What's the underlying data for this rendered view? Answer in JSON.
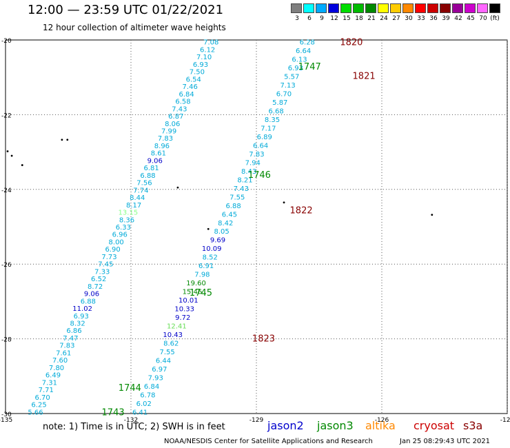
{
  "header": {
    "title": "12:00 — 23:59 UTC 01/22/2021",
    "subtitle": "12 hour collection of altimeter wave heights"
  },
  "colorbar": {
    "unit": "(ft)",
    "levels": [
      {
        "label": "3",
        "color": "#7f7f7f"
      },
      {
        "label": "6",
        "color": "#00ffff"
      },
      {
        "label": "9",
        "color": "#00aaff"
      },
      {
        "label": "12",
        "color": "#0000dd"
      },
      {
        "label": "15",
        "color": "#00dd00"
      },
      {
        "label": "18",
        "color": "#00bb00"
      },
      {
        "label": "21",
        "color": "#008800"
      },
      {
        "label": "24",
        "color": "#ffff00"
      },
      {
        "label": "27",
        "color": "#ffcc00"
      },
      {
        "label": "30",
        "color": "#ff8800"
      },
      {
        "label": "33",
        "color": "#ff0000"
      },
      {
        "label": "36",
        "color": "#cc0000"
      },
      {
        "label": "39",
        "color": "#880000"
      },
      {
        "label": "42",
        "color": "#990099"
      },
      {
        "label": "45",
        "color": "#cc00cc"
      },
      {
        "label": "70",
        "color": "#ff66ff"
      },
      {
        "label": "",
        "color": "#000000"
      }
    ]
  },
  "chart_data": {
    "type": "scatter",
    "xlim": [
      -135,
      -123
    ],
    "ylim": [
      -30,
      -20
    ],
    "x_ticks": [
      "-135",
      "-132",
      "-129",
      "-126",
      "-123",
      "-120"
    ],
    "y_ticks": [
      "-20",
      "-22",
      "-24",
      "-26",
      "-28",
      "-30"
    ],
    "swh_colors": {
      "cyan": "#00aad8",
      "blue": "#0000c8",
      "green": "#008800",
      "lightgreen": "#66dd55",
      "pale": "#88ff88"
    },
    "tracks": [
      {
        "name": "track-west",
        "x_start": -134.1,
        "x_end": -129.9,
        "values": [
          "5.66",
          "6.25",
          "6.70",
          "7.71",
          "7.31",
          "6.49",
          "7.80",
          "7.60",
          "7.61",
          "7.83",
          "7.47",
          "6.86",
          "8.32",
          "6.93",
          "11.02",
          "6.88",
          "9.06",
          "8.72",
          "6.52",
          "7.33",
          "7.45",
          "7.73",
          "6.90",
          "8.00",
          "6.96",
          "6.33",
          "8.36",
          "13.15",
          "8.17",
          "8.44",
          "7.74",
          "7.56",
          "6.88",
          "6.81",
          "9.06",
          "8.61",
          "8.96",
          "7.83",
          "7.99",
          "8.06",
          "6.87",
          "7.43",
          "6.58",
          "6.84",
          "7.46",
          "6.54",
          "7.50",
          "6.93",
          "7.10",
          "6.12",
          "7.08"
        ],
        "colors": [
          "c",
          "c",
          "c",
          "c",
          "c",
          "c",
          "c",
          "c",
          "c",
          "c",
          "c",
          "c",
          "c",
          "c",
          "b",
          "c",
          "b",
          "c",
          "c",
          "c",
          "c",
          "c",
          "c",
          "c",
          "c",
          "c",
          "c",
          "p",
          "c",
          "c",
          "c",
          "c",
          "c",
          "c",
          "b",
          "c",
          "c",
          "c",
          "c",
          "c",
          "c",
          "c",
          "c",
          "c",
          "c",
          "c",
          "c",
          "c",
          "c",
          "c",
          "c"
        ]
      },
      {
        "name": "track-east",
        "x_start": -131.6,
        "x_end": -127.6,
        "values": [
          "6.41",
          "6.02",
          "6.78",
          "6.84",
          "7.93",
          "6.97",
          "6.44",
          "7.55",
          "8.62",
          "10.43",
          "12.41",
          "9.72",
          "10.33",
          "10.01",
          "15.46",
          "19.60",
          "7.98",
          "6.91",
          "8.52",
          "10.09",
          "9.69",
          "8.05",
          "8.42",
          "6.45",
          "6.88",
          "7.55",
          "7.43",
          "8.21",
          "8.43",
          "7.94",
          "7.83",
          "6.64",
          "6.89",
          "7.17",
          "8.35",
          "6.68",
          "5.87",
          "6.70",
          "7.13",
          "5.57",
          "6.93",
          "6.13",
          "6.64",
          "6.28"
        ],
        "colors": [
          "c",
          "c",
          "c",
          "c",
          "c",
          "c",
          "c",
          "c",
          "c",
          "b",
          "l",
          "b",
          "b",
          "b",
          "g",
          "g",
          "c",
          "c",
          "c",
          "b",
          "b",
          "c",
          "c",
          "c",
          "c",
          "c",
          "c",
          "c",
          "c",
          "c",
          "c",
          "c",
          "c",
          "c",
          "c",
          "c",
          "c",
          "c",
          "c",
          "c",
          "c",
          "c",
          "c",
          "c"
        ]
      }
    ],
    "pass_labels": [
      {
        "text": "1820",
        "lon": -127.0,
        "lat": -20.05,
        "color": "#880000"
      },
      {
        "text": "1747",
        "lon": -128.0,
        "lat": -20.7,
        "color": "#008800"
      },
      {
        "text": "1821",
        "lon": -126.7,
        "lat": -20.95,
        "color": "#880000"
      },
      {
        "text": "1746",
        "lon": -129.2,
        "lat": -23.6,
        "color": "#008800"
      },
      {
        "text": "1822",
        "lon": -128.2,
        "lat": -24.55,
        "color": "#880000"
      },
      {
        "text": "1745",
        "lon": -130.6,
        "lat": -26.75,
        "color": "#008800"
      },
      {
        "text": "1823",
        "lon": -129.1,
        "lat": -27.98,
        "color": "#880000"
      },
      {
        "text": "1744",
        "lon": -132.3,
        "lat": -29.3,
        "color": "#008800"
      },
      {
        "text": "1743",
        "lon": -132.7,
        "lat": -29.95,
        "color": "#008800"
      }
    ],
    "islands": [
      {
        "lon": -133.65,
        "lat": -22.67
      },
      {
        "lon": -133.52,
        "lat": -22.67
      },
      {
        "lon": -134.6,
        "lat": -23.35
      },
      {
        "lon": -130.88,
        "lat": -23.95
      },
      {
        "lon": -130.15,
        "lat": -25.06
      },
      {
        "lon": -128.34,
        "lat": -24.35
      },
      {
        "lon": -124.8,
        "lat": -24.68
      },
      {
        "lon": -134.95,
        "lat": -22.98
      },
      {
        "lon": -134.85,
        "lat": -23.1
      }
    ]
  },
  "legend": {
    "note": "note:  1) Time is in UTC;  2) SWH is in feet",
    "satellites": [
      {
        "label": "jason2",
        "color": "#0000cc"
      },
      {
        "label": "jason3",
        "color": "#008800"
      },
      {
        "label": "altika",
        "color": "#ff8800"
      },
      {
        "label": "cryosat",
        "color": "#cc0000"
      },
      {
        "label": "s3a",
        "color": "#880000"
      }
    ]
  },
  "footer": {
    "credit": "NOAA/NESDIS Center for Satellite Applications and Research",
    "timestamp": "Jan 25 08:29:43 UTC 2021"
  }
}
